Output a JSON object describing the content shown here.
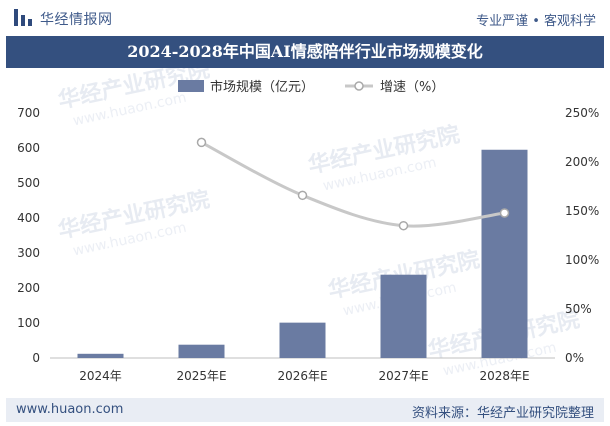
{
  "header": {
    "brand": "华经情报网",
    "tagline": "专业严谨 • 客观科学",
    "title": "2024-2028年中国AI情感陪伴行业市场规模变化"
  },
  "footer": {
    "website": "www.huaon.com",
    "source": "资料来源：华经产业研究院整理"
  },
  "watermark": {
    "name": "华经产业研究院",
    "url": "www.huaon.com"
  },
  "colors": {
    "bar": "#6a7ba2",
    "line": "#c8c8c8",
    "title_bg": "#34507f",
    "accent": "#3f5a8a"
  },
  "chart_data": {
    "type": "bar",
    "categories": [
      "2024年",
      "2025年E",
      "2026年E",
      "2027年E",
      "2028年E"
    ],
    "series": [
      {
        "name": "市场规模（亿元）",
        "type": "bar",
        "axis": "left",
        "values": [
          12,
          38,
          101,
          238,
          595
        ]
      },
      {
        "name": "增速（%）",
        "type": "line",
        "axis": "right",
        "values": [
          null,
          220,
          166,
          135,
          148
        ]
      }
    ],
    "ylim": [
      0,
      700
    ],
    "yticks": [
      "0",
      "100",
      "200",
      "300",
      "400",
      "500",
      "600",
      "700"
    ],
    "y2lim": [
      0,
      250
    ],
    "y2ticks": [
      "0%",
      "50%",
      "100%",
      "150%",
      "200%",
      "250%"
    ],
    "legend": "top-center",
    "grid": false
  }
}
